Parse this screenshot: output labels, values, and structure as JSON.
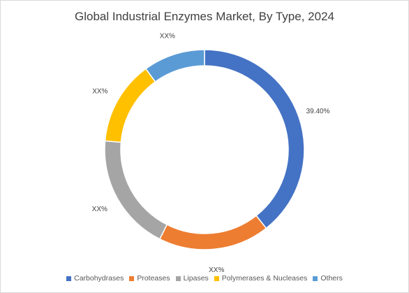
{
  "chart_data": {
    "type": "pie",
    "variant": "donut",
    "title": "Global Industrial Enzymes Market, By Type, 2024",
    "categories": [
      "Carbohydrases",
      "Proteases",
      "Lipases",
      "Polymerases & Nucleases",
      "Others"
    ],
    "values": [
      39.4,
      18.0,
      19.0,
      13.6,
      10.0
    ],
    "data_labels": [
      "39.40%",
      "XX%",
      "XX%",
      "XX%",
      "XX%"
    ],
    "colors": [
      "#4472c4",
      "#ed7d31",
      "#a5a5a5",
      "#ffc000",
      "#5b9bd5"
    ],
    "legend_position": "bottom"
  }
}
